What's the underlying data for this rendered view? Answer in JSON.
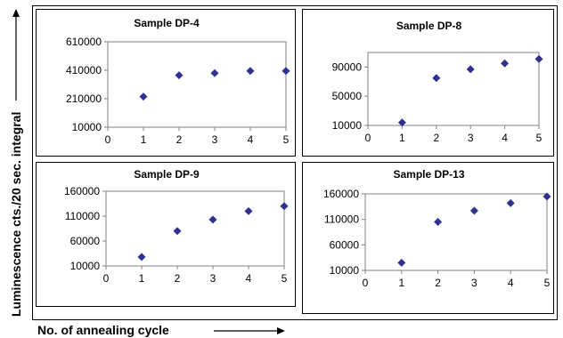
{
  "figure": {
    "ylabel": "Luminescence cts./20 sec. integral",
    "xlabel": "No. of annealing cycle"
  },
  "colors": {
    "marker": "#2e3192",
    "axis": "#808080",
    "frame": "#000000"
  },
  "chart_data": [
    {
      "type": "scatter",
      "title": "Sample DP-4",
      "x": [
        1,
        2,
        3,
        4,
        5
      ],
      "y": [
        225000,
        375000,
        390000,
        405000,
        405000
      ],
      "xlim": [
        0,
        5
      ],
      "ylim": [
        10000,
        610000
      ],
      "xticks": [
        0,
        1,
        2,
        3,
        4,
        5
      ],
      "yticks": [
        10000,
        210000,
        410000,
        610000
      ],
      "xtick_labels": [
        "0",
        "1",
        "2",
        "3",
        "4",
        "5"
      ],
      "ytick_labels": [
        "10000",
        "210000",
        "410000",
        "610000"
      ],
      "grid": false,
      "legend": "none"
    },
    {
      "type": "scatter",
      "title": "Sample DP-8",
      "x": [
        1,
        2,
        3,
        4,
        5
      ],
      "y": [
        14000,
        75000,
        87000,
        95000,
        101000
      ],
      "xlim": [
        0,
        5
      ],
      "ylim": [
        10000,
        110000
      ],
      "xticks": [
        0,
        1,
        2,
        3,
        4,
        5
      ],
      "yticks": [
        10000,
        50000,
        90000
      ],
      "xtick_labels": [
        "0",
        "1",
        "2",
        "3",
        "4",
        "5"
      ],
      "ytick_labels": [
        "10000",
        "50000",
        "90000"
      ],
      "grid": false,
      "legend": "none"
    },
    {
      "type": "scatter",
      "title": "Sample DP-9",
      "x": [
        1,
        2,
        3,
        4,
        5
      ],
      "y": [
        28000,
        80000,
        103000,
        120000,
        130000
      ],
      "xlim": [
        0,
        5
      ],
      "ylim": [
        10000,
        160000
      ],
      "xticks": [
        0,
        1,
        2,
        3,
        4,
        5
      ],
      "yticks": [
        10000,
        60000,
        110000,
        160000
      ],
      "xtick_labels": [
        "0",
        "1",
        "2",
        "3",
        "4",
        "5"
      ],
      "ytick_labels": [
        "10000",
        "60000",
        "110000",
        "160000"
      ],
      "grid": false,
      "legend": "none"
    },
    {
      "type": "scatter",
      "title": "Sample DP-13",
      "x": [
        1,
        2,
        3,
        4,
        5
      ],
      "y": [
        25000,
        105000,
        127000,
        142000,
        155000
      ],
      "xlim": [
        0,
        5
      ],
      "ylim": [
        10000,
        160000
      ],
      "xticks": [
        0,
        1,
        2,
        3,
        4,
        5
      ],
      "yticks": [
        10000,
        60000,
        110000,
        160000
      ],
      "xtick_labels": [
        "0",
        "1",
        "2",
        "3",
        "4",
        "5"
      ],
      "ytick_labels": [
        "10000",
        "60000",
        "110000",
        "160000"
      ],
      "grid": false,
      "legend": "none"
    }
  ]
}
